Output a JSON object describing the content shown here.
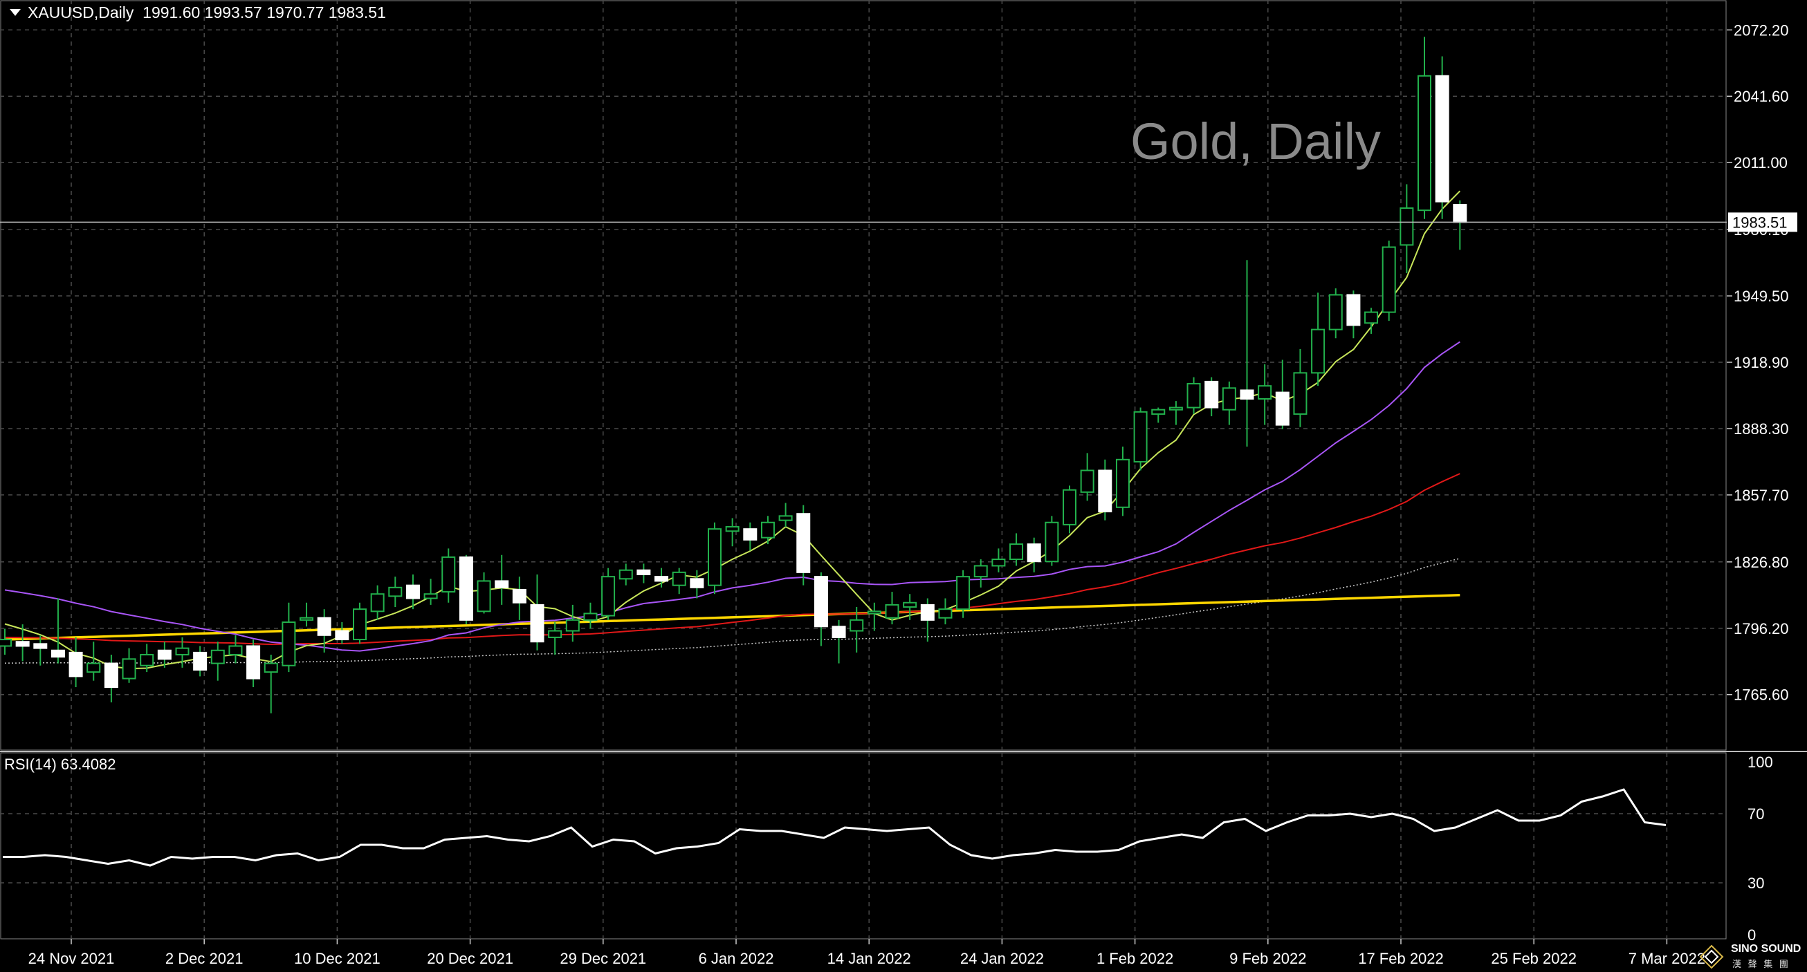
{
  "header": {
    "symbol": "XAUUSD,Daily",
    "ohlc": "1991.60 1993.57 1970.77 1983.51"
  },
  "watermark": "Gold, Daily",
  "logo": {
    "name": "SINO SOUND",
    "sub": "漢 聲 集 團",
    "icon": "diamond-logo-icon"
  },
  "colors": {
    "background": "#000000",
    "grid": "#4a4a4a",
    "candle_up_border": "#22b14c",
    "candle_body": "#ffffff",
    "wick": "#22b14c",
    "ma_fast": "#c8e65a",
    "ma_mid": "#a855f7",
    "ma_slow": "#e01818",
    "ma_long": "#ffd700",
    "ma_dotted": "#c8c8c8",
    "rsi_line": "#ffffff",
    "price_tag_bg": "#ffffff",
    "price_tag_text": "#000000"
  },
  "chart_data": [
    {
      "type": "candlestick",
      "title": "XAUUSD,Daily",
      "ylim": [
        1740,
        2086
      ],
      "y_ticks": [
        "2072.20",
        "2041.60",
        "2011.00",
        "1980.10",
        "1949.50",
        "1918.90",
        "1888.30",
        "1857.70",
        "1826.80",
        "1796.20",
        "1765.60"
      ],
      "current_price": "1983.51",
      "grid": true,
      "x_tick_labels": [
        "24 Nov 2021",
        "2 Dec 2021",
        "10 Dec 2021",
        "20 Dec 2021",
        "29 Dec 2021",
        "6 Jan 2022",
        "14 Jan 2022",
        "24 Jan 2022",
        "1 Feb 2022",
        "9 Feb 2022",
        "17 Feb 2022",
        "25 Feb 2022",
        "7 Mar 2022"
      ],
      "x_tick_indices": [
        0,
        6,
        12,
        18,
        24,
        30,
        36,
        42,
        48,
        54,
        60,
        66,
        72
      ],
      "candles": [
        [
          1788,
          1791,
          1784,
          1796
        ],
        [
          1790,
          1788,
          1781,
          1798
        ],
        [
          1789,
          1787,
          1779,
          1793
        ],
        [
          1786,
          1783,
          1780,
          1810
        ],
        [
          1785,
          1774,
          1769,
          1792
        ],
        [
          1776,
          1780,
          1772,
          1790
        ],
        [
          1780,
          1769,
          1762,
          1784
        ],
        [
          1773,
          1782,
          1771,
          1787
        ],
        [
          1779,
          1784,
          1776,
          1789
        ],
        [
          1786,
          1782,
          1778,
          1790
        ],
        [
          1784,
          1787,
          1778,
          1792
        ],
        [
          1785,
          1777,
          1774,
          1788
        ],
        [
          1780,
          1786,
          1772,
          1790
        ],
        [
          1784,
          1788,
          1780,
          1793
        ],
        [
          1788,
          1773,
          1769,
          1791
        ],
        [
          1776,
          1780,
          1757,
          1784
        ],
        [
          1779,
          1799,
          1776,
          1808
        ],
        [
          1800,
          1801,
          1797,
          1808
        ],
        [
          1801,
          1793,
          1785,
          1805
        ],
        [
          1795,
          1791,
          1789,
          1799
        ],
        [
          1791,
          1805,
          1789,
          1808
        ],
        [
          1804,
          1812,
          1800,
          1816
        ],
        [
          1811,
          1815,
          1806,
          1820
        ],
        [
          1816,
          1810,
          1805,
          1821
        ],
        [
          1810,
          1812,
          1807,
          1819
        ],
        [
          1813,
          1829,
          1808,
          1833
        ],
        [
          1829,
          1800,
          1798,
          1830
        ],
        [
          1804,
          1818,
          1803,
          1822
        ],
        [
          1818,
          1815,
          1807,
          1830
        ],
        [
          1814,
          1808,
          1800,
          1820
        ],
        [
          1807,
          1790,
          1786,
          1821
        ],
        [
          1792,
          1795,
          1784,
          1799
        ],
        [
          1795,
          1800,
          1790,
          1807
        ],
        [
          1800,
          1803,
          1796,
          1808
        ],
        [
          1802,
          1820,
          1800,
          1824
        ],
        [
          1819,
          1823,
          1816,
          1826
        ],
        [
          1823,
          1821,
          1817,
          1826
        ],
        [
          1820,
          1818,
          1815,
          1824
        ],
        [
          1816,
          1822,
          1812,
          1824
        ],
        [
          1819,
          1815,
          1810,
          1823
        ],
        [
          1816,
          1842,
          1812,
          1845
        ],
        [
          1841,
          1843,
          1834,
          1847
        ],
        [
          1842,
          1837,
          1832,
          1845
        ],
        [
          1838,
          1845,
          1835,
          1848
        ],
        [
          1846,
          1848,
          1843,
          1854
        ],
        [
          1849,
          1822,
          1816,
          1853
        ],
        [
          1820,
          1797,
          1788,
          1822
        ],
        [
          1797,
          1792,
          1780,
          1800
        ],
        [
          1795,
          1800,
          1785,
          1806
        ],
        [
          1803,
          1804,
          1795,
          1808
        ],
        [
          1801,
          1807,
          1798,
          1813
        ],
        [
          1806,
          1808,
          1800,
          1812
        ],
        [
          1807,
          1800,
          1790,
          1810
        ],
        [
          1801,
          1805,
          1798,
          1810
        ],
        [
          1805,
          1820,
          1801,
          1823
        ],
        [
          1820,
          1825,
          1815,
          1828
        ],
        [
          1825,
          1828,
          1822,
          1833
        ],
        [
          1828,
          1835,
          1825,
          1840
        ],
        [
          1835,
          1827,
          1822,
          1838
        ],
        [
          1827,
          1845,
          1825,
          1848
        ],
        [
          1844,
          1860,
          1840,
          1862
        ],
        [
          1859,
          1869,
          1855,
          1877
        ],
        [
          1869,
          1850,
          1846,
          1874
        ],
        [
          1852,
          1874,
          1848,
          1880
        ],
        [
          1873,
          1896,
          1869,
          1898
        ],
        [
          1895,
          1897,
          1891,
          1898
        ],
        [
          1897,
          1898,
          1890,
          1901
        ],
        [
          1898,
          1909,
          1895,
          1912
        ],
        [
          1910,
          1898,
          1894,
          1912
        ],
        [
          1897,
          1907,
          1890,
          1910
        ],
        [
          1906,
          1902,
          1880,
          1966
        ],
        [
          1902,
          1908,
          1890,
          1918
        ]
      ],
      "candles_tail": [
        [
          1905,
          1890,
          1888,
          1920
        ],
        [
          1895,
          1914,
          1889,
          1925
        ],
        [
          1914,
          1934,
          1908,
          1951
        ],
        [
          1934,
          1950,
          1930,
          1953
        ],
        [
          1950,
          1936,
          1930,
          1952
        ],
        [
          1937,
          1942,
          1932,
          1944
        ],
        [
          1942,
          1972,
          1938,
          1975
        ],
        [
          1973,
          1990,
          1960,
          2001
        ],
        [
          1989,
          2051,
          1985,
          2069
        ],
        [
          2051,
          1993,
          1985,
          2060
        ],
        [
          1991.6,
          1983.51,
          1970.77,
          1993.57
        ]
      ]
    },
    {
      "type": "line",
      "title": "RSI(14) 63.4082",
      "ylim": [
        0,
        100
      ],
      "y_ticks": [
        "100",
        "70",
        "30",
        "0"
      ],
      "series": [
        {
          "name": "RSI(14)",
          "values": [
            45,
            45,
            46,
            45,
            43,
            41,
            43,
            40,
            45,
            44,
            45,
            45,
            43,
            46,
            47,
            43,
            45,
            52,
            52,
            50,
            50,
            55,
            56,
            57,
            55,
            54,
            57,
            62,
            51,
            55,
            54,
            47,
            50,
            51,
            53,
            61,
            60,
            60,
            58,
            56,
            62,
            61,
            60,
            61,
            62,
            52,
            46,
            44,
            46,
            47,
            49,
            48,
            48,
            49,
            54,
            56,
            58,
            56,
            65,
            67,
            60,
            65,
            69,
            69,
            70,
            68,
            70,
            67,
            60,
            62,
            67,
            72,
            66,
            66,
            69,
            77,
            80,
            84,
            65,
            63.41
          ]
        }
      ]
    }
  ]
}
